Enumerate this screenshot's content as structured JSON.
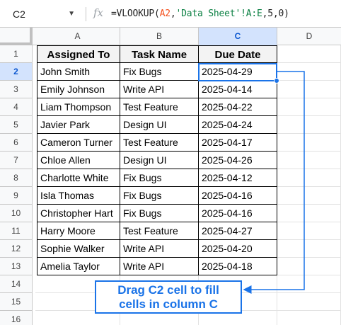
{
  "formula_bar": {
    "name_box": "C2",
    "fx_label": "fx",
    "formula_prefix": "=VLOOKUP(",
    "formula_ref": "A2",
    "formula_sep1": ",",
    "formula_sheet": "'Data Sheet'!A:E",
    "formula_suffix": ",5,0)"
  },
  "columns": [
    "A",
    "B",
    "C",
    "D"
  ],
  "selected_column": "C",
  "rows": [
    "1",
    "2",
    "3",
    "4",
    "5",
    "6",
    "7",
    "8",
    "9",
    "10",
    "11",
    "12",
    "13",
    "14",
    "15",
    "16"
  ],
  "selected_row": "2",
  "table": {
    "headers": [
      "Assigned To",
      "Task Name",
      "Due Date"
    ],
    "rows": [
      [
        "John Smith",
        "Fix Bugs",
        "2025-04-29"
      ],
      [
        "Emily Johnson",
        "Write API",
        "2025-04-14"
      ],
      [
        "Liam Thompson",
        "Test Feature",
        "2025-04-22"
      ],
      [
        "Javier Park",
        "Design UI",
        "2025-04-24"
      ],
      [
        "Cameron Turner",
        "Test Feature",
        "2025-04-17"
      ],
      [
        "Chloe Allen",
        "Design UI",
        "2025-04-26"
      ],
      [
        "Charlotte White",
        "Fix Bugs",
        "2025-04-12"
      ],
      [
        "Isla Thomas",
        "Fix Bugs",
        "2025-04-16"
      ],
      [
        "Christopher Hart",
        "Fix Bugs",
        "2025-04-16"
      ],
      [
        "Harry Moore",
        "Test Feature",
        "2025-04-27"
      ],
      [
        "Sophie Walker",
        "Write API",
        "2025-04-20"
      ],
      [
        "Amelia Taylor",
        "Write API",
        "2025-04-18"
      ]
    ]
  },
  "annotation": {
    "line1": "Drag C2 cell to fill",
    "line2": "cells in column C",
    "color": "#1a73e8"
  },
  "colors": {
    "selection": "#1a73e8",
    "header_selected_bg": "#d3e3fd",
    "formula_ref": "#f4511e",
    "formula_sheet": "#0b8043"
  }
}
